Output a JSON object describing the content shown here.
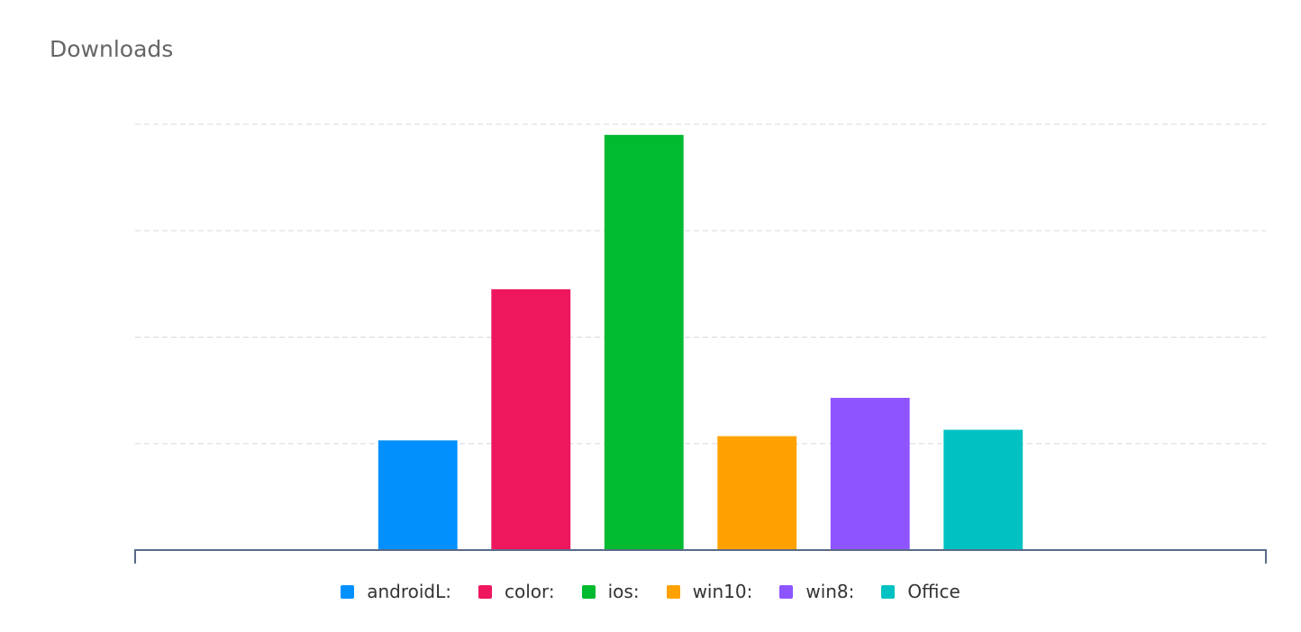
{
  "chart_data": {
    "type": "bar",
    "title": "Downloads",
    "categories": [
      null
    ],
    "series": [
      {
        "name": "androidL:",
        "color": "#0390ff",
        "values": [
          1.03
        ]
      },
      {
        "name": "color:",
        "color": "#ee165d",
        "values": [
          2.45
        ]
      },
      {
        "name": "ios:",
        "color": "#00ba2f",
        "values": [
          3.9
        ]
      },
      {
        "name": "win10:",
        "color": "#ffa200",
        "values": [
          1.07
        ]
      },
      {
        "name": "win8:",
        "color": "#8e55ff",
        "values": [
          1.43
        ]
      },
      {
        "name": "Office",
        "color": "#00c2c2",
        "values": [
          1.13
        ]
      }
    ],
    "ylim": [
      0,
      4
    ],
    "yticks": [
      1,
      2,
      3,
      4
    ],
    "grid": true
  }
}
